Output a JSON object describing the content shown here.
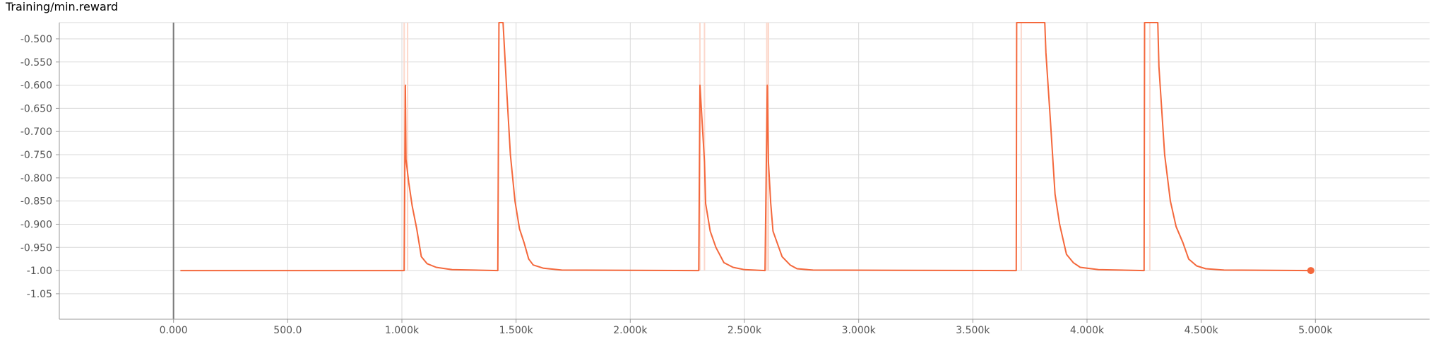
{
  "chart_data": {
    "type": "line",
    "title": "Training/min.reward",
    "xlabel": "",
    "ylabel": "",
    "xlim": [
      -500,
      5500
    ],
    "ylim": [
      -1.105,
      -0.465
    ],
    "grid": true,
    "accent_color": "#f4683c",
    "raw_color": "#fcd8cc",
    "x_ticks": [
      0,
      500,
      1000,
      1500,
      2000,
      2500,
      3000,
      3500,
      4000,
      4500,
      5000
    ],
    "x_tick_labels": [
      "0.000",
      "500.0",
      "1.000k",
      "1.500k",
      "2.000k",
      "2.500k",
      "3.000k",
      "3.500k",
      "4.000k",
      "4.500k",
      "5.000k"
    ],
    "y_ticks": [
      -0.5,
      -0.55,
      -0.6,
      -0.65,
      -0.7,
      -0.75,
      -0.8,
      -0.85,
      -0.9,
      -0.95,
      -1.0,
      -1.05
    ],
    "y_tick_labels": [
      "-0.500",
      "-0.550",
      "-0.600",
      "-0.650",
      "-0.700",
      "-0.750",
      "-0.800",
      "-0.850",
      "-0.900",
      "-0.950",
      "-1.00",
      "-1.05"
    ],
    "series": [
      {
        "values": [
          [
            30,
            -1.0
          ],
          [
            1010,
            -1.0
          ],
          [
            1015,
            -0.6
          ],
          [
            1018,
            -0.76
          ],
          [
            1030,
            -0.81
          ],
          [
            1045,
            -0.86
          ],
          [
            1065,
            -0.91
          ],
          [
            1085,
            -0.97
          ],
          [
            1110,
            -0.985
          ],
          [
            1150,
            -0.993
          ],
          [
            1220,
            -0.998
          ],
          [
            1420,
            -1.0
          ],
          [
            1425,
            -0.46
          ],
          [
            1443,
            -0.46
          ],
          [
            1460,
            -0.62
          ],
          [
            1475,
            -0.75
          ],
          [
            1495,
            -0.85
          ],
          [
            1515,
            -0.91
          ],
          [
            1535,
            -0.94
          ],
          [
            1555,
            -0.975
          ],
          [
            1575,
            -0.988
          ],
          [
            1620,
            -0.995
          ],
          [
            1700,
            -0.999
          ],
          [
            2300,
            -1.0
          ],
          [
            2305,
            -0.6
          ],
          [
            2325,
            -0.765
          ],
          [
            2330,
            -0.855
          ],
          [
            2350,
            -0.915
          ],
          [
            2375,
            -0.95
          ],
          [
            2410,
            -0.983
          ],
          [
            2450,
            -0.993
          ],
          [
            2500,
            -0.998
          ],
          [
            2590,
            -1.0
          ],
          [
            2600,
            -0.6
          ],
          [
            2605,
            -0.765
          ],
          [
            2615,
            -0.855
          ],
          [
            2625,
            -0.915
          ],
          [
            2665,
            -0.97
          ],
          [
            2700,
            -0.988
          ],
          [
            2730,
            -0.996
          ],
          [
            2800,
            -0.999
          ],
          [
            3690,
            -1.0
          ],
          [
            3692,
            -0.46
          ],
          [
            3815,
            -0.46
          ],
          [
            3820,
            -0.53
          ],
          [
            3840,
            -0.68
          ],
          [
            3860,
            -0.835
          ],
          [
            3880,
            -0.9
          ],
          [
            3910,
            -0.965
          ],
          [
            3940,
            -0.983
          ],
          [
            3970,
            -0.993
          ],
          [
            4050,
            -0.998
          ],
          [
            4250,
            -1.0
          ],
          [
            4252,
            -0.46
          ],
          [
            4310,
            -0.46
          ],
          [
            4315,
            -0.56
          ],
          [
            4340,
            -0.75
          ],
          [
            4365,
            -0.85
          ],
          [
            4390,
            -0.905
          ],
          [
            4420,
            -0.94
          ],
          [
            4445,
            -0.975
          ],
          [
            4480,
            -0.99
          ],
          [
            4520,
            -0.996
          ],
          [
            4600,
            -0.999
          ],
          [
            4980,
            -1.0
          ]
        ]
      }
    ],
    "raw_spikes": [
      1010,
      1025,
      2305,
      2325,
      2598,
      2605,
      3712,
      4275
    ],
    "last_point": [
      4980,
      -1.0
    ]
  }
}
